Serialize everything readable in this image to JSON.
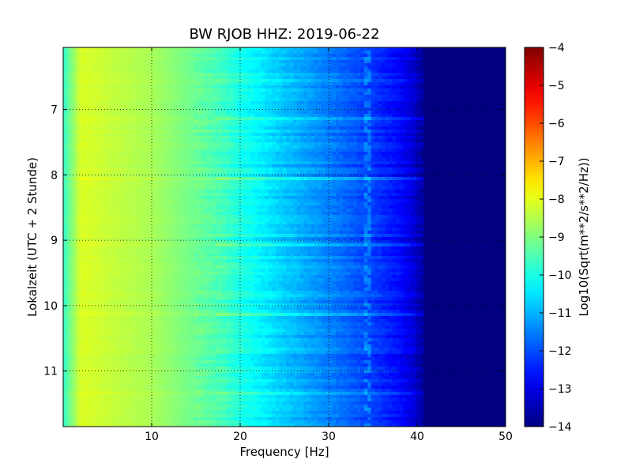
{
  "chart_data": {
    "type": "heatmap",
    "title": "BW RJOB HHZ: 2019-06-22",
    "xlabel": "Frequency [Hz]",
    "ylabel": "Lokalzeit (UTC + 2 Stunde)",
    "colorbar_label": "Log10(Sqrt(m**2/s**2/Hz))",
    "xlim": [
      0,
      50
    ],
    "ylim_hours": [
      6.05,
      11.85
    ],
    "x_ticks": [
      10,
      20,
      30,
      40,
      50
    ],
    "x_tick_labels": [
      "10",
      "20",
      "30",
      "40",
      "50"
    ],
    "y_ticks": [
      7,
      8,
      9,
      10,
      11
    ],
    "y_tick_labels": [
      "7",
      "8",
      "9",
      "10",
      "11"
    ],
    "colorbar_range": [
      -14,
      -4
    ],
    "colorbar_ticks": [
      -4,
      -5,
      -6,
      -7,
      -8,
      -9,
      -10,
      -11,
      -12,
      -13,
      -14
    ],
    "colorbar_tick_labels": [
      "−4",
      "−5",
      "−6",
      "−7",
      "−8",
      "−9",
      "−10",
      "−11",
      "−12",
      "−13",
      "−14"
    ],
    "colormap": "jet",
    "grid": true,
    "grid_style": "dotted",
    "spectral_profile": {
      "frequencies": [
        0,
        2,
        5,
        10,
        15,
        18,
        20,
        25,
        30,
        35,
        38,
        40,
        41,
        50
      ],
      "log10_amplitude": [
        -9.8,
        -8.1,
        -8.3,
        -8.6,
        -9.2,
        -9.6,
        -10.0,
        -10.8,
        -11.5,
        -12.2,
        -12.7,
        -13.3,
        -14.0,
        -14.0
      ]
    },
    "persistent_line_hz": 34.5
  }
}
